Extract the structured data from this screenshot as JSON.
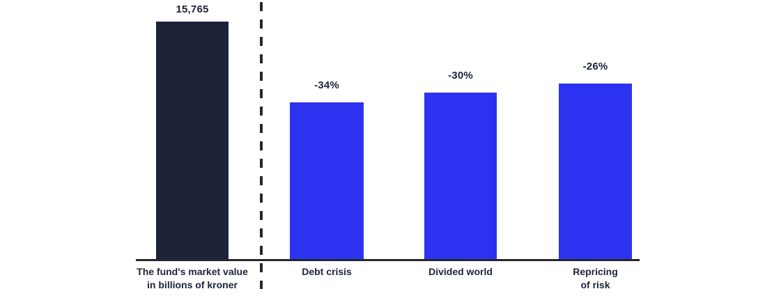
{
  "page": {
    "background": "#ffffff"
  },
  "chart_data": {
    "type": "bar",
    "title": "",
    "full_value": 15765,
    "axes": {
      "baseline_shown": true,
      "gridlines": false,
      "y_ticks": [],
      "legend": null
    },
    "divider": {
      "style": "dashed",
      "orientation": "vertical",
      "color": "#26262c"
    },
    "colors": {
      "navy": "#1c2339",
      "blue": "#2b33f0",
      "axis": "#26262c"
    },
    "bars": [
      {
        "category": "The fund's market value in billions of kroner",
        "label_lines": [
          "The fund's market value",
          "in billions of kroner"
        ],
        "value": 15765,
        "value_label": "15,765",
        "color": "#1c2339",
        "group": "current"
      },
      {
        "category": "Debt crisis",
        "label_lines": [
          "Debt crisis"
        ],
        "decline_pct": -34,
        "value_label": "-34%",
        "color": "#2b33f0",
        "group": "scenario"
      },
      {
        "category": "Divided world",
        "label_lines": [
          "Divided world"
        ],
        "decline_pct": -30,
        "value_label": "-30%",
        "color": "#2b33f0",
        "group": "scenario"
      },
      {
        "category": "Repricing of risk",
        "label_lines": [
          "Repricing",
          "of risk"
        ],
        "decline_pct": -26,
        "value_label": "-26%",
        "color": "#2b33f0",
        "group": "scenario"
      }
    ]
  }
}
